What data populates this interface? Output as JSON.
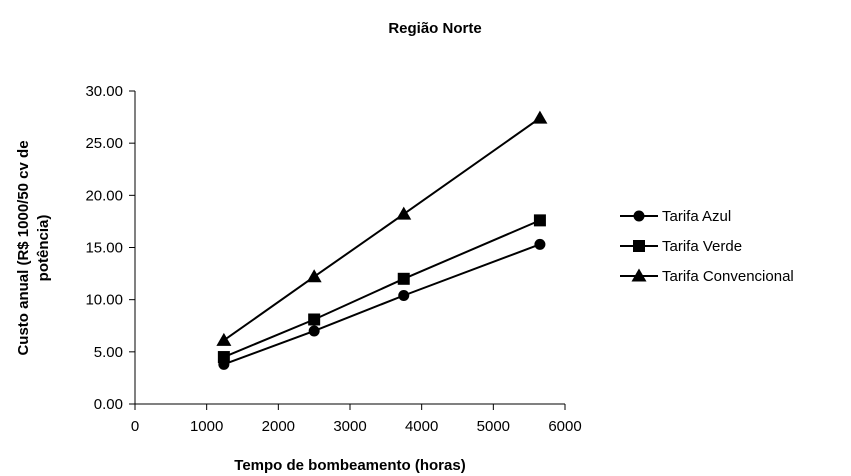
{
  "chart_data": {
    "type": "line",
    "title": "Região Norte",
    "xlabel": "Tempo de bombeamento (horas)",
    "ylabel_line1": "Custo anual (R$ 1000/50 cv de",
    "ylabel_line2": "potência)",
    "xlim": [
      0,
      6000
    ],
    "ylim": [
      0,
      30
    ],
    "x_ticks": [
      0,
      1000,
      2000,
      3000,
      4000,
      5000,
      6000
    ],
    "y_ticks": [
      0,
      5,
      10,
      15,
      20,
      25,
      30
    ],
    "x_tick_labels": [
      "0",
      "1000",
      "2000",
      "3000",
      "4000",
      "5000",
      "6000"
    ],
    "y_tick_labels": [
      "0.00",
      "5.00",
      "10.00",
      "15.00",
      "20.00",
      "25.00",
      "30.00"
    ],
    "grid": false,
    "legend_position": "right",
    "x": [
      1240,
      2500,
      3750,
      5650
    ],
    "series": [
      {
        "name": "Tarifa Azul",
        "marker": "circle",
        "values": [
          3.8,
          7.0,
          10.4,
          15.3
        ]
      },
      {
        "name": "Tarifa Verde",
        "marker": "square",
        "values": [
          4.5,
          8.1,
          12.0,
          17.6
        ]
      },
      {
        "name": "Tarifa Convencional",
        "marker": "triangle",
        "values": [
          6.1,
          12.2,
          18.2,
          27.4
        ]
      }
    ],
    "colors": {
      "line": "#000000",
      "marker": "#000000"
    }
  }
}
